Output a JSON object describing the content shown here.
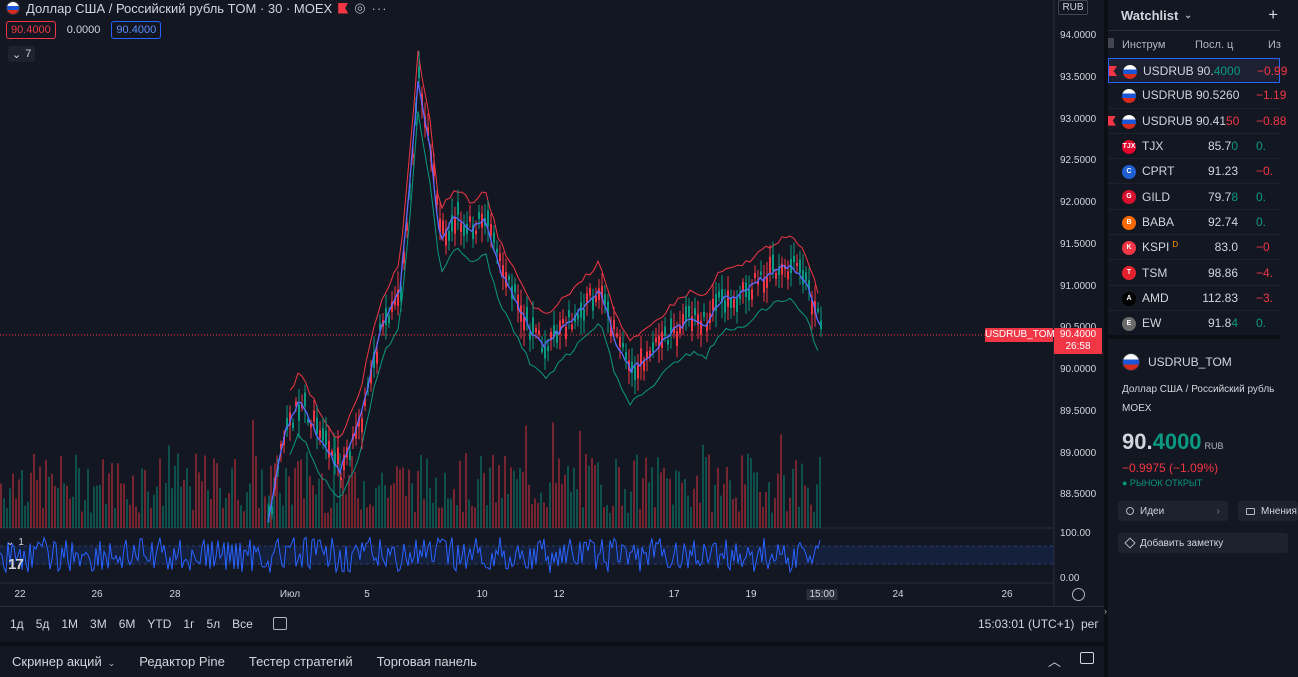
{
  "legend": {
    "title": "Доллар США / Российский рубль TOM · 30 · MOEX",
    "dots": "···",
    "price_red": "90.4000",
    "spread": "0.0000",
    "price_blue": "90.4000",
    "collapse_count": "7"
  },
  "axis": {
    "currency": "RUB",
    "y_ticks": [
      "94.0000",
      "93.5000",
      "93.0000",
      "92.5000",
      "92.0000",
      "91.5000",
      "91.0000",
      "90.5000",
      "90.0000",
      "89.5000",
      "89.0000",
      "88.5000"
    ],
    "indicator_ticks": [
      "100.00",
      "0.00"
    ],
    "x_ticks": [
      "22",
      "26",
      "28",
      "Июл",
      "5",
      "10",
      "12",
      "17",
      "19",
      "15:00",
      "24",
      "26"
    ]
  },
  "price_line": {
    "symbol": "USDRUB_TOM",
    "price": "90.4000",
    "countdown": "26:58"
  },
  "indicator": {
    "badge_count": "1",
    "logo": "17"
  },
  "range_bar": {
    "ranges": [
      "1д",
      "5д",
      "1М",
      "3М",
      "6М",
      "YTD",
      "1г",
      "5л",
      "Все"
    ],
    "time": "15:03:01 (UTC+1)",
    "mode": "рег"
  },
  "bottom_tabs": [
    "Скринер акций",
    "Редактор Pine",
    "Тестер стратегий",
    "Торговая панель"
  ],
  "watchlist": {
    "title": "Watchlist",
    "columns": {
      "symbol": "Инструм",
      "last": "Посл. ц",
      "change": "Из"
    },
    "rows": [
      {
        "symbol": "USDRUB",
        "last_main": "90.",
        "last_tail": "4000",
        "change": "−0.99",
        "icon": "us-flag",
        "marked": true,
        "selected": true,
        "color": "neg"
      },
      {
        "symbol": "USDRUB",
        "last_main": "90.5260",
        "last_tail": "",
        "change": "−1.19",
        "icon": "us-flag",
        "marked": false,
        "selected": false,
        "color": "neg"
      },
      {
        "symbol": "USDRUB",
        "last_main": "90.41",
        "last_tail": "50",
        "change": "−0.88",
        "icon": "us-flag",
        "marked": true,
        "selected": false,
        "color": "neg"
      },
      {
        "symbol": "TJX",
        "last_main": "85.7",
        "last_tail": "0",
        "change": "0.",
        "icon": "TJX",
        "marked": false,
        "selected": false,
        "color": "pos",
        "icon_color": "#e4002b"
      },
      {
        "symbol": "CPRT",
        "last_main": "91.23",
        "last_tail": "",
        "change": "−0.",
        "icon": "C",
        "marked": false,
        "selected": false,
        "color": "neg",
        "icon_color": "#1f5fd1"
      },
      {
        "symbol": "GILD",
        "last_main": "79.7",
        "last_tail": "8",
        "change": "0.",
        "icon": "G",
        "marked": false,
        "selected": false,
        "color": "pos",
        "icon_color": "#d8112f"
      },
      {
        "symbol": "BABA",
        "last_main": "92.74",
        "last_tail": "",
        "change": "0.",
        "icon": "B",
        "marked": false,
        "selected": false,
        "color": "pos",
        "icon_color": "#ff6a00"
      },
      {
        "symbol": "KSPI",
        "last_main": "83.0",
        "last_tail": "",
        "change": "−0",
        "icon": "K",
        "marked": false,
        "selected": false,
        "color": "neg",
        "icon_color": "#f23645",
        "sup": "D"
      },
      {
        "symbol": "TSM",
        "last_main": "98.86",
        "last_tail": "",
        "change": "−4.",
        "icon": "T",
        "marked": false,
        "selected": false,
        "color": "neg",
        "icon_color": "#e3222e"
      },
      {
        "symbol": "AMD",
        "last_main": "112.83",
        "last_tail": "",
        "change": "−3.",
        "icon": "A",
        "marked": false,
        "selected": false,
        "color": "neg",
        "icon_color": "#000000"
      },
      {
        "symbol": "EW",
        "last_main": "91.8",
        "last_tail": "4",
        "change": "0.",
        "icon": "E",
        "marked": false,
        "selected": false,
        "color": "pos",
        "icon_color": "#6b6b6b"
      }
    ]
  },
  "details": {
    "symbol": "USDRUB_TOM",
    "name": "Доллар США / Российский рубль",
    "exchange": "MOEX",
    "price_main": "90.",
    "price_frac": "4000",
    "currency": "RUB",
    "change": "−0.9975 (−1.09%)",
    "status": "● РЫНОК ОТКРЫТ",
    "ideas_label": "Идеи",
    "opinions_label": "Мнения",
    "note_label": "Добавить заметку"
  },
  "colors": {
    "up": "#089981",
    "down": "#f23645",
    "accent": "#2962ff",
    "bg": "#131722"
  }
}
